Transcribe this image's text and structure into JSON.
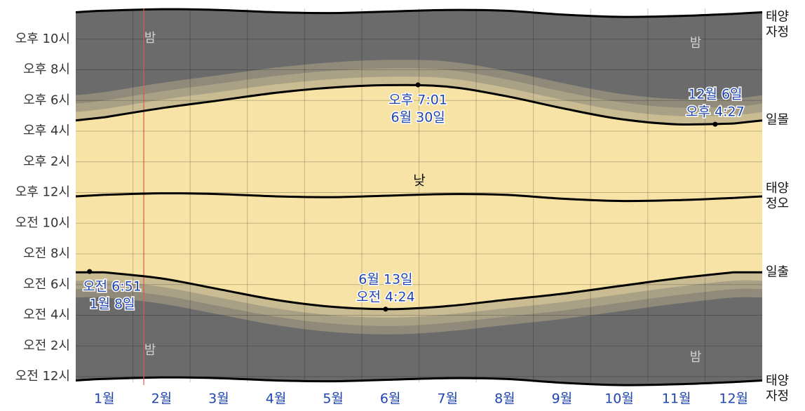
{
  "chart_data": {
    "type": "daylight",
    "categories": [
      "1월",
      "2월",
      "3월",
      "4월",
      "5월",
      "6월",
      "7월",
      "8월",
      "9월",
      "10월",
      "11월",
      "12월"
    ],
    "series": [
      {
        "name": "일출",
        "color": "#000000",
        "values": [
          6.8,
          6.4,
          5.7,
          5.0,
          4.55,
          4.4,
          4.6,
          5.0,
          5.4,
          5.9,
          6.4,
          6.8
        ]
      },
      {
        "name": "일몰",
        "color": "#000000",
        "values": [
          16.9,
          17.5,
          18.0,
          18.5,
          18.85,
          19.0,
          18.9,
          18.3,
          17.5,
          16.8,
          16.45,
          16.5
        ]
      },
      {
        "name": "태양 정오",
        "color": "#000000",
        "values": [
          11.85,
          11.95,
          11.9,
          11.75,
          11.7,
          11.8,
          11.9,
          11.85,
          11.6,
          11.45,
          11.5,
          11.65
        ]
      }
    ],
    "midnight_label": "태양 자정",
    "day_label": "낮",
    "night_label": "밤",
    "day_color": "#f7e3a6",
    "night_color": "#6b6b6b",
    "ylim": [
      0,
      24
    ],
    "yticks": [
      {
        "value": 0,
        "label": "오전 12시"
      },
      {
        "value": 2,
        "label": "오전 2시"
      },
      {
        "value": 4,
        "label": "오전 4시"
      },
      {
        "value": 6,
        "label": "오전 6시"
      },
      {
        "value": 8,
        "label": "오전 8시"
      },
      {
        "value": 10,
        "label": "오전 10시"
      },
      {
        "value": 12,
        "label": "오후 12시"
      },
      {
        "value": 14,
        "label": "오후 2시"
      },
      {
        "value": 16,
        "label": "오후 4시"
      },
      {
        "value": 18,
        "label": "오후 6시"
      },
      {
        "value": 20,
        "label": "오후 8시"
      },
      {
        "value": 22,
        "label": "오후 10시"
      }
    ],
    "grid": true,
    "annotations": [
      {
        "value": 19.0167,
        "value_label": "오후 7:01",
        "date": "6월 30일",
        "placement": "below"
      },
      {
        "value": 16.45,
        "value_label": "오후 4:27",
        "date": "12월 6일",
        "placement": "above"
      },
      {
        "value": 4.4,
        "value_label": "오전 4:24",
        "date": "6월 13일",
        "placement": "above"
      },
      {
        "value": 6.85,
        "value_label": "오전 6:51",
        "date": "1월 8일",
        "placement": "below"
      }
    ]
  }
}
